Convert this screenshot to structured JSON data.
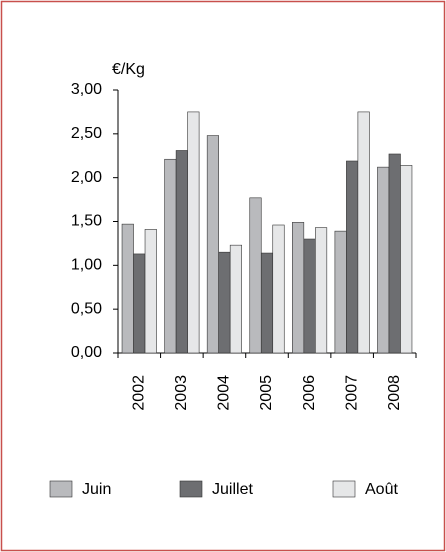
{
  "chart_data": {
    "type": "bar",
    "y_label": "€/Kg",
    "categories": [
      "2002",
      "2003",
      "2004",
      "2005",
      "2006",
      "2007",
      "2008"
    ],
    "series": [
      {
        "name": "Juin",
        "color": "#b9babd",
        "values": [
          1.47,
          2.21,
          2.48,
          1.77,
          1.49,
          1.39,
          2.12
        ]
      },
      {
        "name": "Juillet",
        "color": "#6d6e71",
        "values": [
          1.13,
          2.31,
          1.15,
          1.14,
          1.3,
          2.19,
          2.27
        ]
      },
      {
        "name": "Août",
        "color": "#e6e7e8",
        "values": [
          1.41,
          2.75,
          1.23,
          1.46,
          1.43,
          2.75,
          2.14
        ]
      }
    ],
    "ylim": [
      0,
      3
    ],
    "yticks": [
      {
        "value": 0,
        "label": "0,00"
      },
      {
        "value": 0.5,
        "label": "0,50"
      },
      {
        "value": 1,
        "label": "1,00"
      },
      {
        "value": 1.5,
        "label": "1,50"
      },
      {
        "value": 2,
        "label": "2,00"
      },
      {
        "value": 2.5,
        "label": "2,50"
      },
      {
        "value": 3,
        "label": "3,00"
      }
    ]
  }
}
